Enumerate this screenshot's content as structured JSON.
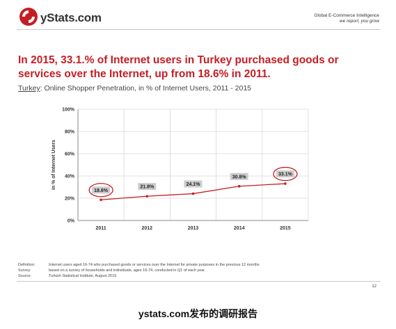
{
  "header": {
    "brand": "yStats.com",
    "tagline_1": "Global E-Commerce Intelligence",
    "tagline_2": "we report, you grow"
  },
  "headline": "In 2015, 33.1.% of Internet users in Turkey purchased goods or services over the Internet, up from 18.6% in 2011.",
  "subtitle": {
    "country": "Turkey",
    "rest": ": Online Shopper Penetration, in % of Internet Users, 2011 - 2015"
  },
  "chart_data": {
    "type": "line",
    "categories": [
      "2011",
      "2012",
      "2013",
      "2014",
      "2015"
    ],
    "series": [
      {
        "values": [
          18.6,
          21.8,
          24.1,
          30.8,
          33.1
        ]
      }
    ],
    "data_labels": [
      "18.6%",
      "21.8%",
      "24.1%",
      "30.8%",
      "33.1%"
    ],
    "highlighted": [
      "2011",
      "2015"
    ],
    "ylabel": "in % of Internet Users",
    "xlabel": "",
    "ylim": [
      0,
      100
    ],
    "yticks": [
      "0%",
      "20%",
      "40%",
      "60%",
      "80%",
      "100%"
    ],
    "grid": true,
    "colors": {
      "line": "#c41e24",
      "highlight_ring": "#c41e24",
      "label_bg": "#cccccc",
      "grid": "#d9d9d9"
    }
  },
  "notes": [
    {
      "key": "Definition:",
      "value": "Internet users aged 16-74 who purchased goods or services over the Internet for private purposes in the previous 12 months"
    },
    {
      "key": "Survey:",
      "value": "based on a survey of households and individuals, ages 16-74, conducted in Q1 of each year"
    },
    {
      "key": "Source:",
      "value": "Turkish Statistical Institute, August 2015"
    }
  ],
  "page_number": "12",
  "caption": "ystats.com发布的调研报告",
  "colors": {
    "accent": "#c41e24"
  }
}
